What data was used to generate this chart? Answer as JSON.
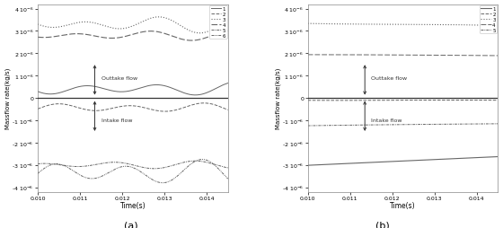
{
  "xlim": [
    0.01,
    0.0145
  ],
  "ylim": [
    -4.2e-06,
    4.2e-06
  ],
  "xlabel": "Time(s)",
  "ylabel": "Massflow rate(kg/s)",
  "subtitle_a": "(a)",
  "subtitle_b": "(b)",
  "annotation_outtake": "Outtake flow",
  "annotation_intake": "Intake flow",
  "xticks": [
    0.01,
    0.011,
    0.012,
    0.013,
    0.014
  ],
  "yticks": [
    -4e-06,
    -3e-06,
    -2e-06,
    -1e-06,
    0,
    1e-06,
    2e-06,
    3e-06,
    4e-06
  ],
  "ytick_labels": [
    "-4 10⁻⁶",
    "-3 10⁻⁶",
    "-2 10⁻⁶",
    "-1 10⁻⁶",
    "0",
    "1 10⁻⁶",
    "2 10⁻⁶",
    "3 10⁻⁶",
    "4 10⁻⁶"
  ],
  "legend_a": [
    "1",
    "2",
    "3",
    "4",
    "5",
    "6"
  ],
  "legend_b": [
    "1",
    "2",
    "3",
    "4",
    "5"
  ]
}
